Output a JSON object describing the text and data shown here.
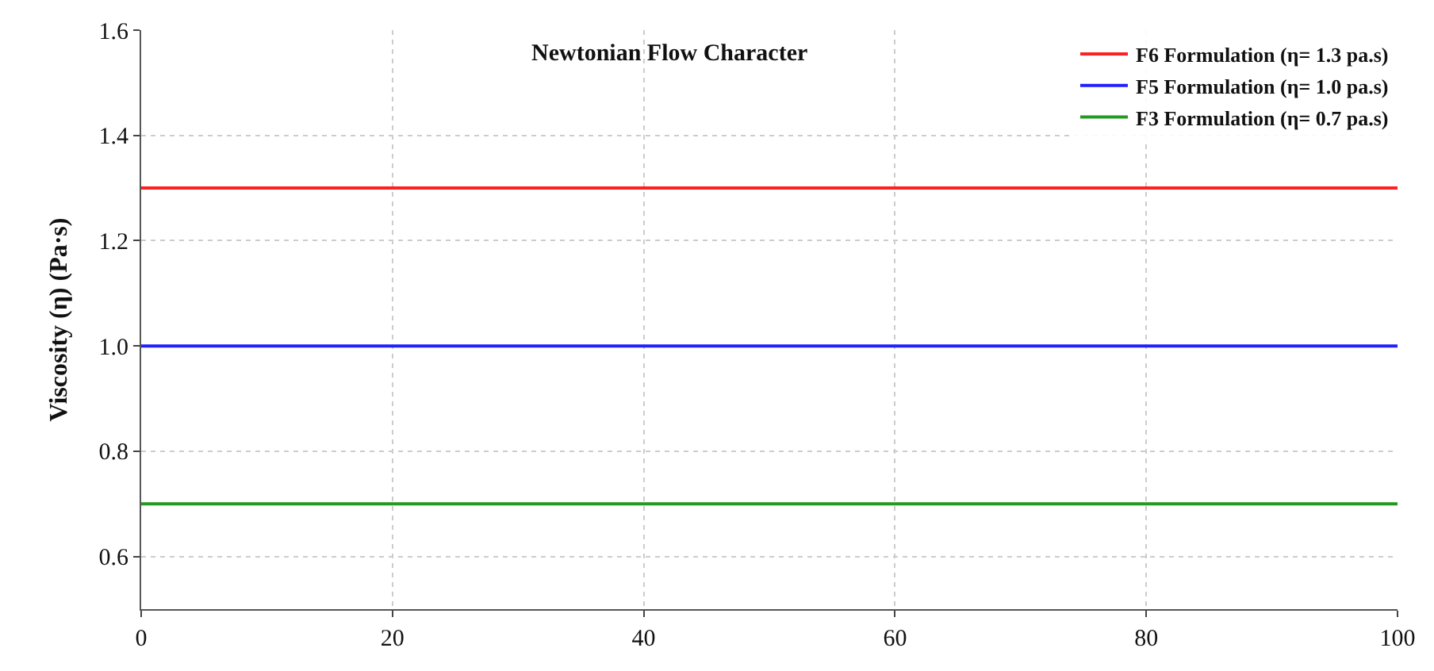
{
  "chart_data": {
    "type": "line",
    "title": "Newtonian Flow Character",
    "ylabel": "Viscosity (η) (Pa·s)",
    "x": [
      0,
      100
    ],
    "series": [
      {
        "name": "F6 Formulation (η= 1.3 pa.s)",
        "color": "#ff2020",
        "values": [
          1.3,
          1.3
        ]
      },
      {
        "name": "F5 Formulation (η= 1.0 pa.s)",
        "color": "#2020ff",
        "values": [
          1.0,
          1.0
        ]
      },
      {
        "name": "F3 Formulation (η= 0.7 pa.s)",
        "color": "#229922",
        "values": [
          0.7,
          0.7
        ]
      }
    ],
    "xlim": [
      0,
      100
    ],
    "xticks": [
      0,
      20,
      40,
      60,
      80,
      100
    ],
    "ylim": [
      0.5,
      1.6
    ],
    "yticks": [
      0.6,
      0.8,
      {
        "value": 1,
        "label": "1.0"
      },
      1.2,
      1.4,
      1.6
    ],
    "grid": true,
    "legend": "top right",
    "marker": "none",
    "line_style": "solid"
  }
}
